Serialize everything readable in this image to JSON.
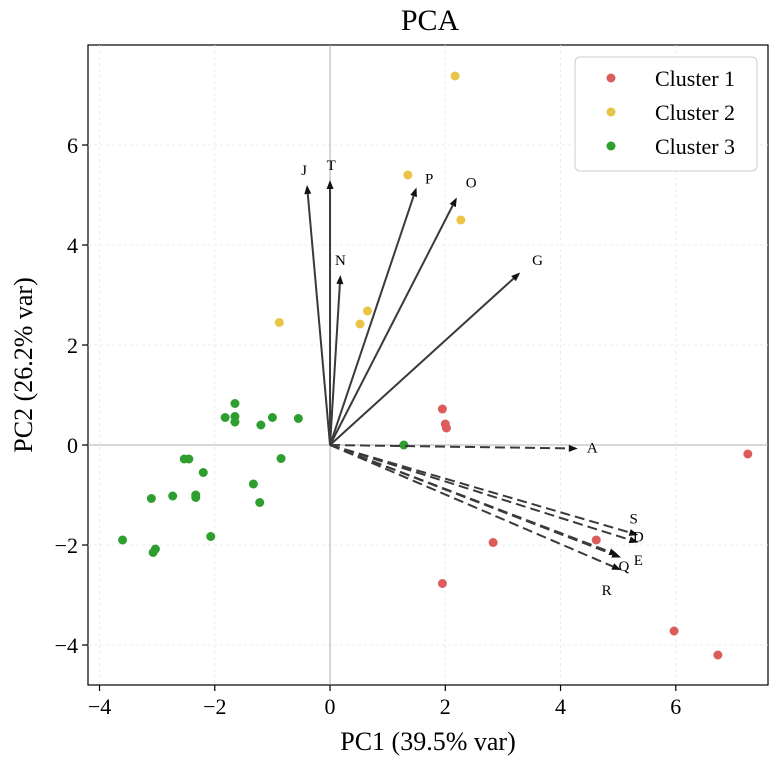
{
  "chart_data": {
    "type": "scatter",
    "title": "PCA",
    "xlabel": "PC1 (39.5% var)",
    "ylabel": "PC2 (26.2% var)",
    "xlim": [
      -4.2,
      7.6
    ],
    "ylim": [
      -4.8,
      8.0
    ],
    "x_ticks": [
      -4,
      -2,
      0,
      2,
      4,
      6
    ],
    "y_ticks": [
      -4,
      -2,
      0,
      2,
      4,
      6
    ],
    "x_tick_labels": [
      "−4",
      "−2",
      "0",
      "2",
      "4",
      "6"
    ],
    "y_tick_labels": [
      "−4",
      "−2",
      "0",
      "2",
      "4",
      "6"
    ],
    "grid": true,
    "legend_position": "top-right",
    "series": [
      {
        "name": "Cluster 1",
        "color": "#dc5c5c",
        "points": [
          [
            1.95,
            0.72
          ],
          [
            2.0,
            0.42
          ],
          [
            2.02,
            0.34
          ],
          [
            2.83,
            -1.95
          ],
          [
            4.62,
            -1.9
          ],
          [
            1.95,
            -2.77
          ],
          [
            7.25,
            -0.18
          ],
          [
            5.97,
            -3.72
          ],
          [
            6.73,
            -4.2
          ]
        ]
      },
      {
        "name": "Cluster 2",
        "color": "#eac444",
        "points": [
          [
            2.17,
            7.38
          ],
          [
            1.35,
            5.4
          ],
          [
            2.27,
            4.5
          ],
          [
            -0.88,
            2.45
          ],
          [
            0.52,
            2.42
          ],
          [
            0.65,
            2.68
          ]
        ]
      },
      {
        "name": "Cluster 3",
        "color": "#2e9e2e",
        "points": [
          [
            -1.65,
            0.83
          ],
          [
            -1.82,
            0.55
          ],
          [
            -1.65,
            0.57
          ],
          [
            -1.65,
            0.46
          ],
          [
            -1.0,
            0.55
          ],
          [
            -1.2,
            0.4
          ],
          [
            -0.55,
            0.53
          ],
          [
            -2.53,
            -0.28
          ],
          [
            -2.45,
            -0.28
          ],
          [
            -2.2,
            -0.55
          ],
          [
            -0.85,
            -0.27
          ],
          [
            -2.73,
            -1.02
          ],
          [
            -2.33,
            -1.0
          ],
          [
            -2.33,
            -1.05
          ],
          [
            -3.1,
            -1.07
          ],
          [
            -1.33,
            -0.78
          ],
          [
            -1.22,
            -1.15
          ],
          [
            -3.6,
            -1.9
          ],
          [
            -3.03,
            -2.08
          ],
          [
            -3.07,
            -2.15
          ],
          [
            -2.07,
            -1.83
          ],
          [
            1.28,
            0.0
          ]
        ]
      }
    ],
    "loadings": [
      {
        "name": "J",
        "x": -0.4,
        "y": 5.2,
        "dashed": false
      },
      {
        "name": "T",
        "x": 0.0,
        "y": 5.3,
        "dashed": false
      },
      {
        "name": "P",
        "x": 1.5,
        "y": 5.15,
        "dashed": false
      },
      {
        "name": "O",
        "x": 2.2,
        "y": 4.95,
        "dashed": false
      },
      {
        "name": "N",
        "x": 0.18,
        "y": 3.4,
        "dashed": false
      },
      {
        "name": "G",
        "x": 3.3,
        "y": 3.45,
        "dashed": false
      },
      {
        "name": "A",
        "x": 4.3,
        "y": -0.07,
        "dashed": true
      },
      {
        "name": "S",
        "x": 5.35,
        "y": -1.8,
        "dashed": true
      },
      {
        "name": "D",
        "x": 5.35,
        "y": -1.95,
        "dashed": true
      },
      {
        "name": "E",
        "x": 5.05,
        "y": -2.25,
        "dashed": true
      },
      {
        "name": "Q",
        "x": 5.0,
        "y": -2.2,
        "dashed": true
      },
      {
        "name": "R",
        "x": 5.05,
        "y": -2.5,
        "dashed": true
      }
    ],
    "arrow_label_offsets": {
      "J": [
        -0.05,
        0.3
      ],
      "T": [
        0.02,
        0.3
      ],
      "P": [
        0.22,
        0.18
      ],
      "O": [
        0.25,
        0.3
      ],
      "N": [
        0.0,
        0.3
      ],
      "G": [
        0.3,
        0.25
      ],
      "A": [
        0.25,
        0.02
      ],
      "S": [
        -0.08,
        0.33
      ],
      "D": [
        0.0,
        0.12
      ],
      "E": [
        0.3,
        -0.05
      ],
      "Q": [
        0.1,
        -0.22
      ],
      "R": [
        -0.25,
        -0.4
      ]
    }
  }
}
